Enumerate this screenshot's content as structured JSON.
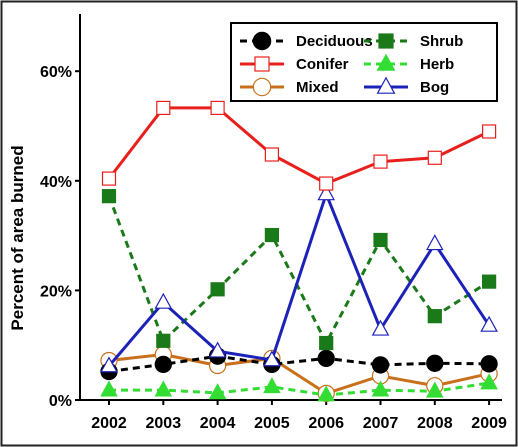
{
  "chart_data": {
    "type": "line",
    "title": "",
    "xlabel": "",
    "ylabel": "Percent of area burned",
    "x": [
      2002,
      2003,
      2004,
      2005,
      2006,
      2007,
      2008,
      2009
    ],
    "x_tick_labels": [
      "2002",
      "2003",
      "2004",
      "2005",
      "2006",
      "2007",
      "2008",
      "2009"
    ],
    "ylim": [
      0,
      70
    ],
    "y_ticks": [
      0,
      20,
      40,
      60
    ],
    "y_tick_labels": [
      "0%",
      "20%",
      "40%",
      "60%"
    ],
    "grid": false,
    "legend_position": "top-right",
    "series": [
      {
        "name": "Deciduous",
        "color": "#000000",
        "dash": true,
        "marker": "circle-filled",
        "values": [
          5.2,
          6.5,
          8.0,
          6.5,
          7.6,
          6.4,
          6.7,
          6.6
        ]
      },
      {
        "name": "Shrub",
        "color": "#1a7a1a",
        "dash": true,
        "marker": "square-filled",
        "values": [
          37.2,
          10.8,
          20.2,
          30.1,
          10.4,
          29.2,
          15.3,
          21.6
        ]
      },
      {
        "name": "Conifer",
        "color": "#e8201c",
        "dash": false,
        "marker": "square-open",
        "values": [
          40.4,
          53.3,
          53.3,
          44.8,
          39.5,
          43.5,
          44.2,
          49.0
        ]
      },
      {
        "name": "Herb",
        "color": "#33dd33",
        "dash": true,
        "marker": "triangle-filled",
        "values": [
          1.8,
          1.8,
          1.3,
          2.4,
          0.9,
          1.8,
          1.6,
          3.1
        ]
      },
      {
        "name": "Mixed",
        "color": "#c8701c",
        "dash": false,
        "marker": "circle-open",
        "values": [
          7.2,
          8.3,
          6.3,
          7.6,
          1.2,
          4.4,
          2.6,
          4.8
        ]
      },
      {
        "name": "Bog",
        "color": "#1c22b8",
        "dash": false,
        "marker": "triangle-open",
        "values": [
          6.2,
          17.8,
          8.9,
          7.3,
          37.6,
          12.9,
          28.5,
          13.6
        ]
      }
    ]
  }
}
